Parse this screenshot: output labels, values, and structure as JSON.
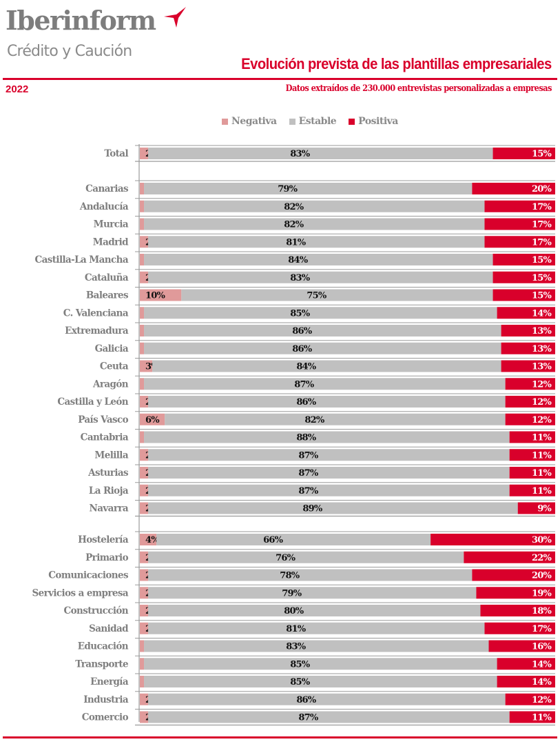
{
  "header": {
    "brand": "Iberinform",
    "brand_sub": "Crédito y Caución",
    "brand_mark_icon": "red-tripod-mark-icon",
    "title": "Evolución prevista de las plantillas empresariales",
    "year": "2022",
    "subtitle": "Datos extraídos de 230.000 entrevistas personalizadas a empresas",
    "accent_color": "#d9002b"
  },
  "chart_data": {
    "type": "bar",
    "orientation": "horizontal",
    "stacked": true,
    "normalized": "100%",
    "title": "Evolución prevista de las plantillas empresariales",
    "subtitle": "Datos extraídos de 230.000 entrevistas personalizadas a empresas",
    "xlabel": "",
    "ylabel": "",
    "xlim": [
      0,
      100
    ],
    "grid": false,
    "legend_position": "top-center",
    "legend": [
      {
        "name": "Negativa",
        "color": "#e09a9a"
      },
      {
        "name": "Estable",
        "color": "#c0c0c0"
      },
      {
        "name": "Positiva",
        "color": "#d9002b"
      }
    ],
    "groups": [
      {
        "name": "total",
        "categories": [
          "Total"
        ],
        "series": [
          {
            "name": "Negativa",
            "values": [
              2
            ]
          },
          {
            "name": "Estable",
            "values": [
              83
            ]
          },
          {
            "name": "Positiva",
            "values": [
              15
            ]
          }
        ]
      },
      {
        "name": "regions",
        "categories": [
          "Canarias",
          "Andalucía",
          "Murcia",
          "Madrid",
          "Castilla-La Mancha",
          "Cataluña",
          "Baleares",
          "C. Valenciana",
          "Extremadura",
          "Galicia",
          "Ceuta",
          "Aragón",
          "Castilla y León",
          "País Vasco",
          "Cantabria",
          "Melilla",
          "Asturias",
          "La Rioja",
          "Navarra"
        ],
        "series": [
          {
            "name": "Negativa",
            "values": [
              1,
              1,
              1,
              2,
              1,
              2,
              10,
              1,
              1,
              1,
              3,
              1,
              2,
              6,
              1,
              2,
              2,
              2,
              2
            ]
          },
          {
            "name": "Estable",
            "values": [
              79,
              82,
              82,
              81,
              84,
              83,
              75,
              85,
              86,
              86,
              84,
              87,
              86,
              82,
              88,
              87,
              87,
              87,
              89
            ]
          },
          {
            "name": "Positiva",
            "values": [
              20,
              17,
              17,
              17,
              15,
              15,
              15,
              14,
              13,
              13,
              13,
              12,
              12,
              12,
              11,
              11,
              11,
              11,
              9
            ]
          }
        ]
      },
      {
        "name": "sectors",
        "categories": [
          "Hostelería",
          "Primario",
          "Comunicaciones",
          "Servicios a empresa",
          "Construcción",
          "Sanidad",
          "Educación",
          "Transporte",
          "Energía",
          "Industria",
          "Comercio"
        ],
        "series": [
          {
            "name": "Negativa",
            "values": [
              4,
              2,
              2,
              2,
              2,
              2,
              1,
              1,
              1,
              2,
              2
            ]
          },
          {
            "name": "Estable",
            "values": [
              66,
              76,
              78,
              79,
              80,
              81,
              83,
              85,
              85,
              86,
              87
            ]
          },
          {
            "name": "Positiva",
            "values": [
              30,
              22,
              20,
              19,
              18,
              17,
              16,
              14,
              14,
              12,
              11
            ]
          }
        ]
      }
    ],
    "value_label_format": "{v}%"
  }
}
